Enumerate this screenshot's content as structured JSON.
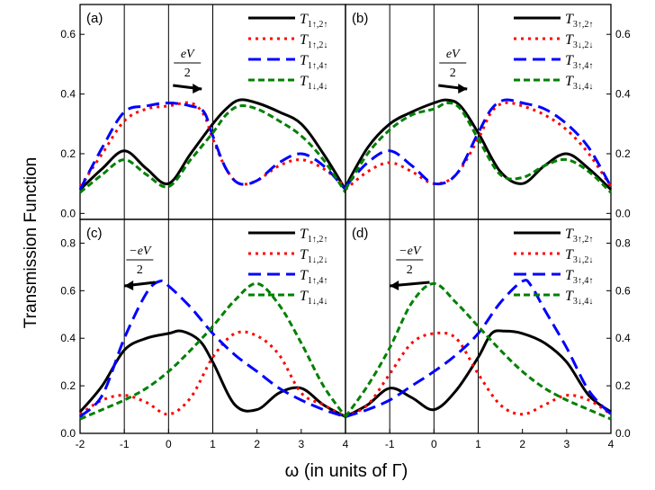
{
  "figure": {
    "ylabel": "Transmission Function",
    "xlabel": "ω (in units of Γ)"
  },
  "chart_data": [
    {
      "type": "line",
      "panel_label": "(a)",
      "xlim": [
        -2,
        4
      ],
      "ylim": [
        -0.02,
        0.7
      ],
      "xticks": [],
      "yticks": [
        0.0,
        0.2,
        0.4,
        0.6
      ],
      "ytick_labels": [
        "0.0",
        "0.2",
        "0.4",
        "0.6"
      ],
      "vlines": [
        -1,
        0,
        1,
        4
      ],
      "legend": "top-right",
      "arrow": {
        "label_num": "eV",
        "label_den": "2",
        "from": 0.1,
        "to": 0.75,
        "direction": "right"
      },
      "series": [
        {
          "name": "T1↑,2↑",
          "sub": "1↑,2↑",
          "color": "#000000",
          "dash": "",
          "width": 3,
          "x": [
            -2.0,
            -1.5,
            -1.0,
            -0.5,
            0.0,
            0.5,
            1.0,
            1.3,
            1.6,
            2.0,
            2.5,
            3.0,
            3.5,
            4.0
          ],
          "y": [
            0.08,
            0.15,
            0.21,
            0.15,
            0.1,
            0.2,
            0.3,
            0.35,
            0.38,
            0.37,
            0.34,
            0.3,
            0.2,
            0.08
          ]
        },
        {
          "name": "T1↑,2↓",
          "sub": "1↑,2↓",
          "color": "#ff0000",
          "dash": "3,5",
          "width": 3,
          "x": [
            -2.0,
            -1.5,
            -1.0,
            -0.5,
            0.0,
            0.5,
            0.8,
            1.0,
            1.3,
            1.6,
            2.0,
            2.5,
            3.0,
            3.5,
            4.0
          ],
          "y": [
            0.09,
            0.2,
            0.31,
            0.35,
            0.36,
            0.37,
            0.33,
            0.25,
            0.15,
            0.1,
            0.11,
            0.16,
            0.18,
            0.15,
            0.09
          ]
        },
        {
          "name": "T1↑,4↑",
          "sub": "1↑,4↑",
          "color": "#0000ff",
          "dash": "14,7",
          "width": 3,
          "x": [
            -2.0,
            -1.5,
            -1.0,
            -0.5,
            0.0,
            0.5,
            0.8,
            1.0,
            1.3,
            1.6,
            2.0,
            2.5,
            3.0,
            3.5,
            4.0
          ],
          "y": [
            0.08,
            0.22,
            0.34,
            0.36,
            0.37,
            0.36,
            0.34,
            0.26,
            0.15,
            0.1,
            0.11,
            0.17,
            0.2,
            0.16,
            0.08
          ]
        },
        {
          "name": "T1↓,4↓",
          "sub": "1↓,4↓",
          "color": "#008000",
          "dash": "7,4",
          "width": 3,
          "x": [
            -2.0,
            -1.5,
            -1.0,
            -0.5,
            0.0,
            0.5,
            1.0,
            1.3,
            1.6,
            2.0,
            2.5,
            3.0,
            3.5,
            4.0
          ],
          "y": [
            0.07,
            0.13,
            0.18,
            0.13,
            0.09,
            0.18,
            0.27,
            0.33,
            0.36,
            0.35,
            0.31,
            0.26,
            0.18,
            0.07
          ]
        }
      ]
    },
    {
      "type": "line",
      "panel_label": "(b)",
      "xlim": [
        -2,
        4
      ],
      "ylim": [
        -0.02,
        0.7
      ],
      "xticks": [],
      "yticks": [
        0.0,
        0.2,
        0.4,
        0.6
      ],
      "ytick_labels": [
        "0.0",
        "0.2",
        "0.4",
        "0.6"
      ],
      "right_axis": true,
      "vlines": [
        -2,
        -1,
        0,
        1
      ],
      "legend": "top-right",
      "arrow": {
        "label_num": "eV",
        "label_den": "2",
        "from": 0.1,
        "to": 0.75,
        "direction": "right"
      },
      "series": [
        {
          "name": "T3↑,2↑",
          "sub": "3↑,2↑",
          "color": "#000000",
          "dash": "",
          "width": 3,
          "x": [
            -2.0,
            -1.5,
            -1.0,
            -0.5,
            0.0,
            0.3,
            0.6,
            1.0,
            1.5,
            2.0,
            2.5,
            3.0,
            3.5,
            4.0
          ],
          "y": [
            0.09,
            0.22,
            0.3,
            0.34,
            0.37,
            0.38,
            0.36,
            0.27,
            0.14,
            0.1,
            0.16,
            0.2,
            0.15,
            0.08
          ]
        },
        {
          "name": "T3↓,2↓",
          "sub": "3↓,2↓",
          "color": "#ff0000",
          "dash": "3,5",
          "width": 3,
          "x": [
            -2.0,
            -1.5,
            -1.0,
            -0.5,
            0.0,
            0.5,
            1.0,
            1.3,
            1.6,
            2.0,
            2.5,
            3.0,
            3.5,
            4.0
          ],
          "y": [
            0.08,
            0.14,
            0.17,
            0.14,
            0.1,
            0.13,
            0.25,
            0.34,
            0.37,
            0.36,
            0.33,
            0.28,
            0.2,
            0.09
          ]
        },
        {
          "name": "T3↑,4↑",
          "sub": "3↑,4↑",
          "color": "#0000ff",
          "dash": "14,7",
          "width": 3,
          "x": [
            -2.0,
            -1.5,
            -1.0,
            -0.5,
            0.0,
            0.5,
            1.0,
            1.3,
            1.6,
            2.0,
            2.5,
            3.0,
            3.5,
            4.0
          ],
          "y": [
            0.09,
            0.17,
            0.21,
            0.16,
            0.1,
            0.13,
            0.27,
            0.35,
            0.38,
            0.37,
            0.35,
            0.3,
            0.22,
            0.09
          ]
        },
        {
          "name": "T3↓,4↓",
          "sub": "3↓,4↓",
          "color": "#008000",
          "dash": "7,4",
          "width": 3,
          "x": [
            -2.0,
            -1.5,
            -1.0,
            -0.5,
            0.0,
            0.3,
            0.6,
            1.0,
            1.5,
            2.0,
            2.5,
            3.0,
            3.5,
            4.0
          ],
          "y": [
            0.08,
            0.2,
            0.28,
            0.33,
            0.35,
            0.37,
            0.35,
            0.25,
            0.13,
            0.12,
            0.16,
            0.18,
            0.14,
            0.07
          ]
        }
      ]
    },
    {
      "type": "line",
      "panel_label": "(c)",
      "xlim": [
        -2,
        4
      ],
      "ylim": [
        0.0,
        0.9
      ],
      "xticks": [
        -2,
        -1,
        0,
        1,
        2,
        3,
        4
      ],
      "xtick_labels": [
        "-2",
        "-1",
        "0",
        "1",
        "2",
        "3",
        "4"
      ],
      "yticks": [
        0.0,
        0.2,
        0.4,
        0.6,
        0.8
      ],
      "ytick_labels": [
        "0.0",
        "0.2",
        "0.4",
        "0.6",
        "0.8"
      ],
      "vlines": [
        -1,
        0,
        1,
        4
      ],
      "legend": "top-right",
      "arrow": {
        "label_num": "−eV",
        "label_den": "2",
        "from": -0.3,
        "to": -1.0,
        "direction": "left"
      },
      "series": [
        {
          "name": "T1↑,2↑",
          "sub": "1↑,2↑",
          "color": "#000000",
          "dash": "",
          "width": 3,
          "x": [
            -2.0,
            -1.5,
            -1.0,
            -0.5,
            0.0,
            0.3,
            0.7,
            1.0,
            1.5,
            2.0,
            2.5,
            3.0,
            3.5,
            4.0
          ],
          "y": [
            0.09,
            0.2,
            0.35,
            0.4,
            0.42,
            0.43,
            0.39,
            0.3,
            0.12,
            0.1,
            0.17,
            0.19,
            0.12,
            0.07
          ]
        },
        {
          "name": "T1↓,2↓",
          "sub": "1↓,2↓",
          "color": "#ff0000",
          "dash": "3,5",
          "width": 3,
          "x": [
            -2.0,
            -1.5,
            -1.0,
            -0.5,
            0.0,
            0.5,
            1.0,
            1.5,
            2.0,
            2.5,
            3.0,
            3.5,
            4.0
          ],
          "y": [
            0.08,
            0.14,
            0.16,
            0.13,
            0.08,
            0.15,
            0.32,
            0.42,
            0.41,
            0.33,
            0.17,
            0.12,
            0.07
          ]
        },
        {
          "name": "T1↑,4↑",
          "sub": "1↑,4↑",
          "color": "#0000ff",
          "dash": "14,7",
          "width": 3,
          "x": [
            -2.0,
            -1.5,
            -1.0,
            -0.5,
            -0.2,
            0.0,
            0.5,
            1.0,
            1.5,
            2.0,
            2.5,
            3.0,
            3.5,
            4.0
          ],
          "y": [
            0.07,
            0.16,
            0.4,
            0.59,
            0.64,
            0.62,
            0.53,
            0.42,
            0.33,
            0.26,
            0.19,
            0.14,
            0.1,
            0.07
          ]
        },
        {
          "name": "T1↓,4↓",
          "sub": "1↓,4↓",
          "color": "#008000",
          "dash": "7,4",
          "width": 3,
          "x": [
            -2.0,
            -1.5,
            -1.0,
            -0.5,
            0.0,
            0.5,
            1.0,
            1.5,
            2.0,
            2.5,
            3.0,
            3.5,
            4.0
          ],
          "y": [
            0.06,
            0.1,
            0.14,
            0.19,
            0.26,
            0.35,
            0.45,
            0.56,
            0.63,
            0.54,
            0.38,
            0.2,
            0.07
          ]
        }
      ]
    },
    {
      "type": "line",
      "panel_label": "(d)",
      "xlim": [
        -2,
        4
      ],
      "ylim": [
        0.0,
        0.9
      ],
      "xticks": [
        -2,
        -1,
        0,
        1,
        2,
        3,
        4
      ],
      "xtick_labels": [
        "",
        "-1",
        "0",
        "1",
        "2",
        "3",
        "4"
      ],
      "yticks": [
        0.0,
        0.2,
        0.4,
        0.6,
        0.8
      ],
      "ytick_labels": [
        "0.0",
        "0.2",
        "0.4",
        "0.6",
        "0.8"
      ],
      "right_axis": true,
      "vlines": [
        -2,
        -1,
        0,
        1
      ],
      "legend": "top-right",
      "arrow": {
        "label_num": "−eV",
        "label_den": "2",
        "from": -0.1,
        "to": -1.0,
        "direction": "left"
      },
      "series": [
        {
          "name": "T3↑,2↑",
          "sub": "3↑,2↑",
          "color": "#000000",
          "dash": "",
          "width": 3,
          "x": [
            -2.0,
            -1.5,
            -1.0,
            -0.5,
            0.0,
            0.5,
            1.0,
            1.3,
            1.6,
            2.0,
            2.5,
            3.0,
            3.5,
            4.0
          ],
          "y": [
            0.07,
            0.12,
            0.19,
            0.15,
            0.1,
            0.18,
            0.32,
            0.42,
            0.43,
            0.42,
            0.38,
            0.3,
            0.16,
            0.09
          ]
        },
        {
          "name": "T3↓,2↓",
          "sub": "3↓,2↓",
          "color": "#ff0000",
          "dash": "3,5",
          "width": 3,
          "x": [
            -2.0,
            -1.5,
            -1.0,
            -0.5,
            0.0,
            0.5,
            1.0,
            1.5,
            2.0,
            2.5,
            3.0,
            3.5,
            4.0
          ],
          "y": [
            0.07,
            0.12,
            0.25,
            0.38,
            0.42,
            0.4,
            0.25,
            0.12,
            0.08,
            0.12,
            0.16,
            0.14,
            0.08
          ]
        },
        {
          "name": "T3↑,4↑",
          "sub": "3↑,4↑",
          "color": "#0000ff",
          "dash": "14,7",
          "width": 3,
          "x": [
            -2.0,
            -1.5,
            -1.0,
            -0.5,
            0.0,
            0.5,
            1.0,
            1.5,
            2.0,
            2.2,
            2.5,
            3.0,
            3.5,
            4.0
          ],
          "y": [
            0.07,
            0.1,
            0.14,
            0.2,
            0.26,
            0.33,
            0.42,
            0.55,
            0.64,
            0.62,
            0.52,
            0.36,
            0.18,
            0.08
          ]
        },
        {
          "name": "T3↓,4↓",
          "sub": "3↓,4↓",
          "color": "#008000",
          "dash": "7,4",
          "width": 3,
          "x": [
            -2.0,
            -1.5,
            -1.0,
            -0.5,
            0.0,
            0.5,
            1.0,
            1.5,
            2.0,
            2.5,
            3.0,
            3.5,
            4.0
          ],
          "y": [
            0.07,
            0.2,
            0.36,
            0.55,
            0.63,
            0.55,
            0.45,
            0.35,
            0.26,
            0.19,
            0.14,
            0.1,
            0.06
          ]
        }
      ]
    }
  ]
}
